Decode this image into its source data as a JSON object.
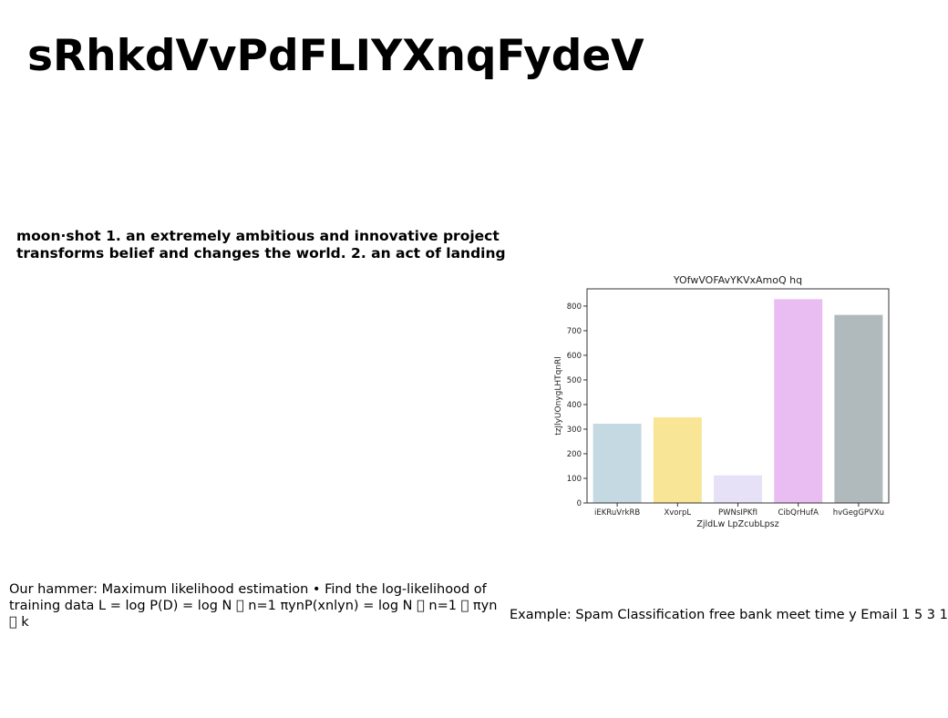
{
  "slide": {
    "title": "sRhkdVvPdFLIYXnqFydeV",
    "definition": "moon·shot 1. an extremely ambitious and innovative project transforms belief and changes the world. 2. an act of landing",
    "mle_text": "Our hammer: Maximum likelihood estimation • Find the log-likelihood of training data L = log P(D) = log N \u0000 n=1 πynP(xnlyn) = log N \u0000 n=1 \u0000 πyn \u0000 k",
    "spam_text": "Example: Spam Classification free bank meet time y Email 1 5 3 1"
  },
  "chart_data": {
    "type": "bar",
    "title": "YOfwVOFAvYKVxAmoQ hq",
    "xlabel": "ZjldLw LpZcubLpsz",
    "ylabel": "tzJlyUOnygLHTqnRl",
    "categories": [
      "iEKRuVrkRB",
      "XvorpL",
      "PWNsIPKfI",
      "CibQrHufA",
      "hvGegGPVXu"
    ],
    "values": [
      322,
      348,
      112,
      828,
      764
    ],
    "colors": [
      "#c5d9e3",
      "#f9e596",
      "#e7e1f7",
      "#e9bdf2",
      "#b0b9bb"
    ],
    "ylim": [
      0,
      870
    ],
    "yticks": [
      0,
      100,
      200,
      300,
      400,
      500,
      600,
      700,
      800
    ],
    "grid": false,
    "legend": "none"
  }
}
